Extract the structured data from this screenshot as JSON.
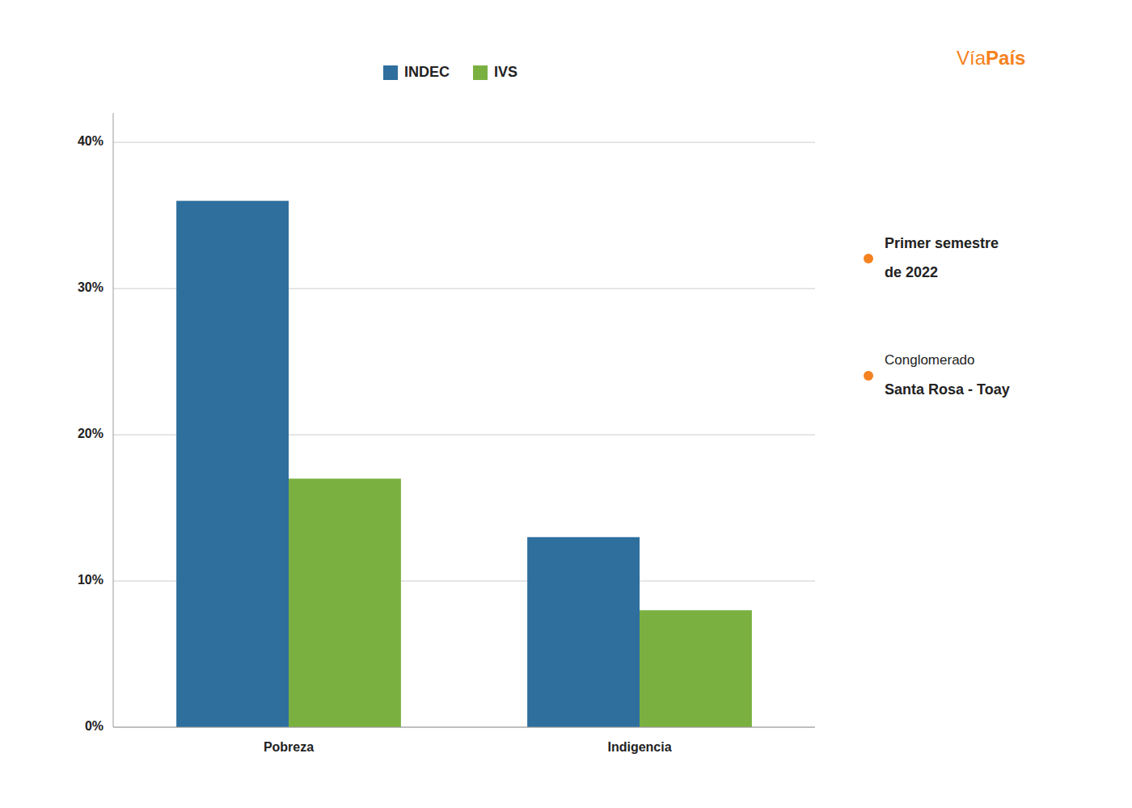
{
  "chart_data": {
    "type": "bar",
    "categories": [
      "Pobreza",
      "Indigencia"
    ],
    "series": [
      {
        "name": "INDEC",
        "color": "#2e6f9e",
        "values": [
          36.0,
          13.0
        ]
      },
      {
        "name": "IVS",
        "color": "#7ab040",
        "values": [
          17.0,
          8.0
        ]
      }
    ],
    "ylim": [
      0,
      42
    ],
    "yticks": [
      {
        "value": 0,
        "label": "0%"
      },
      {
        "value": 10,
        "label": "10%"
      },
      {
        "value": 20,
        "label": "20%"
      },
      {
        "value": 30,
        "label": "30%"
      },
      {
        "value": 40,
        "label": "40%"
      }
    ],
    "grid": true,
    "legend": "top",
    "annotations": [
      [
        "Vía",
        "País"
      ],
      [
        "Primer semestre",
        "de 2022"
      ],
      [
        "Conglomerado",
        "Santa Rosa - Toay"
      ]
    ]
  }
}
